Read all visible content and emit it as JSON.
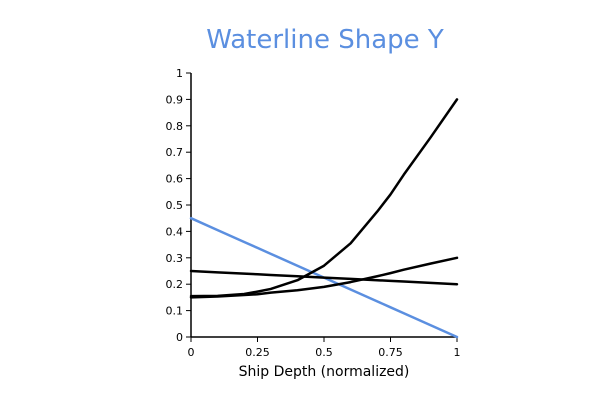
{
  "chart_data": {
    "type": "line",
    "title": "Waterline Shape Y",
    "xlabel": "Ship Depth (normalized)",
    "ylabel": "",
    "xlim": [
      0,
      1
    ],
    "ylim": [
      0,
      1
    ],
    "x_ticks": [
      "0",
      "0.25",
      "0.5",
      "0.75",
      "1"
    ],
    "y_ticks": [
      "0",
      "0.1",
      "0.2",
      "0.3",
      "0.4",
      "0.5",
      "0.6",
      "0.7",
      "0.8",
      "0.9",
      "1"
    ],
    "grid": false,
    "legend": "none",
    "x": [
      0,
      0.1,
      0.2,
      0.25,
      0.3,
      0.4,
      0.5,
      0.6,
      0.7,
      0.75,
      0.8,
      0.9,
      1.0
    ],
    "series": [
      {
        "color": "#5b8fe0",
        "values": [
          0.45,
          0.405,
          0.36,
          0.3375,
          0.315,
          0.27,
          0.225,
          0.18,
          0.135,
          0.1125,
          0.09,
          0.045,
          0.0
        ]
      },
      {
        "color": "#000000",
        "values": [
          0.25,
          0.245,
          0.24,
          0.2375,
          0.235,
          0.23,
          0.225,
          0.22,
          0.215,
          0.2125,
          0.21,
          0.205,
          0.2
        ]
      },
      {
        "color": "#000000",
        "values": [
          0.15,
          0.1535,
          0.159,
          0.162,
          0.168,
          0.177,
          0.19,
          0.208,
          0.23,
          0.242,
          0.255,
          0.278,
          0.3
        ]
      },
      {
        "color": "#000000",
        "values": [
          0.155,
          0.156,
          0.163,
          0.172,
          0.182,
          0.215,
          0.27,
          0.355,
          0.475,
          0.54,
          0.615,
          0.755,
          0.9
        ]
      }
    ],
    "colors": {
      "title": "#5b8fe0",
      "axis": "#000000"
    }
  }
}
